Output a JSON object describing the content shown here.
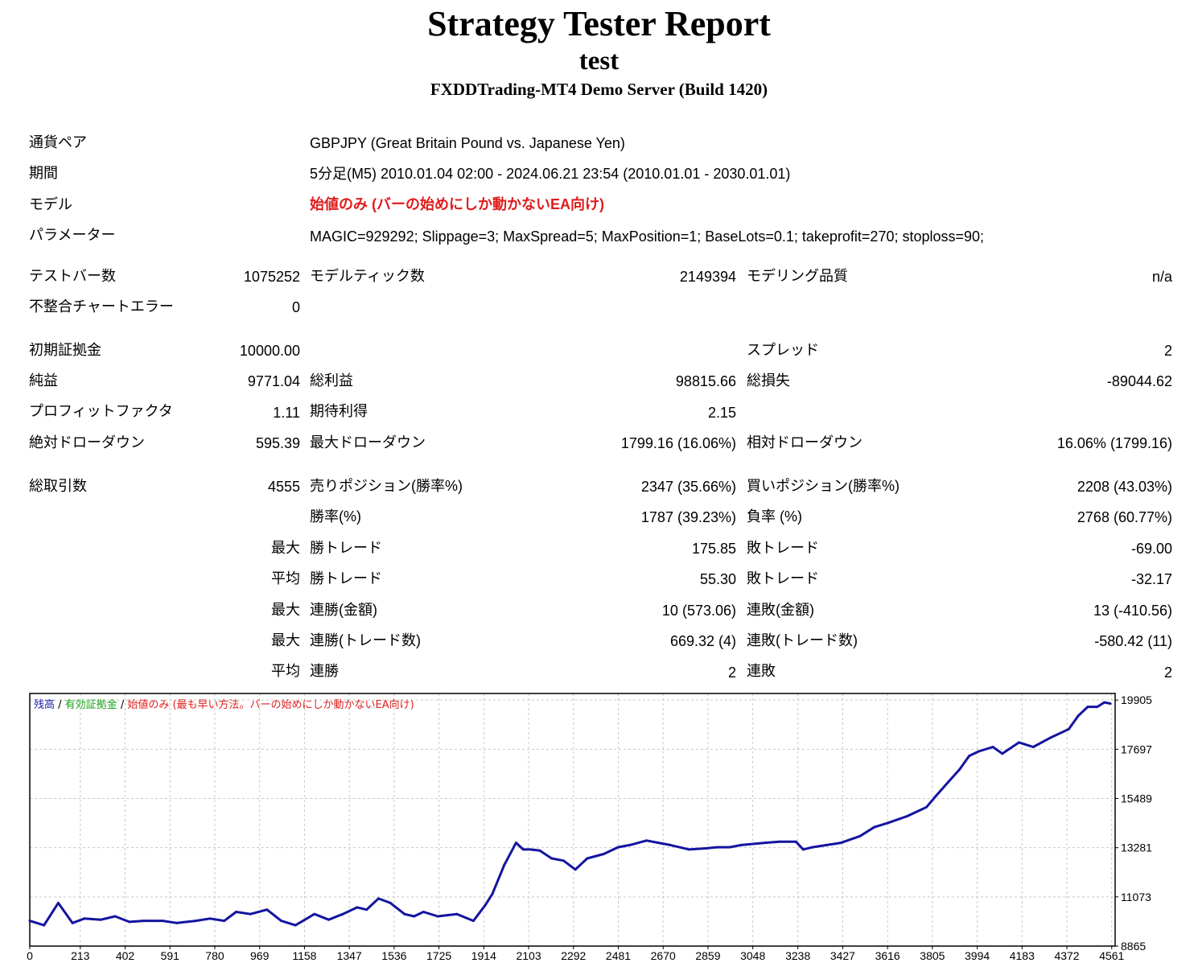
{
  "header": {
    "title": "Strategy Tester Report",
    "name": "test",
    "server": "FXDDTrading-MT4 Demo Server (Build 1420)"
  },
  "info": {
    "symbol_label": "通貨ペア",
    "symbol_value": "GBPJPY (Great Britain Pound vs. Japanese Yen)",
    "period_label": "期間",
    "period_value": "5分足(M5) 2010.01.04 02:00 - 2024.06.21 23:54 (2010.01.01 - 2030.01.01)",
    "model_label": "モデル",
    "model_value": "始値のみ (バーの始めにしか動かないEA向け)",
    "params_label": "パラメーター",
    "params_value": "MAGIC=929292; Slippage=3; MaxSpread=5; MaxPosition=1; BaseLots=0.1; takeprofit=270; stoploss=90;"
  },
  "stats": {
    "bars_label": "テストバー数",
    "bars_value": "1075252",
    "ticks_label": "モデルティック数",
    "ticks_value": "2149394",
    "quality_label": "モデリング品質",
    "quality_value": "n/a",
    "errors_label": "不整合チャートエラー",
    "errors_value": "0",
    "deposit_label": "初期証拠金",
    "deposit_value": "10000.00",
    "spread_label": "スプレッド",
    "spread_value": "2",
    "netprofit_label": "純益",
    "netprofit_value": "9771.04",
    "grossprofit_label": "総利益",
    "grossprofit_value": "98815.66",
    "grossloss_label": "総損失",
    "grossloss_value": "-89044.62",
    "pf_label": "プロフィットファクタ",
    "pf_value": "1.11",
    "payoff_label": "期待利得",
    "payoff_value": "2.15",
    "absdd_label": "絶対ドローダウン",
    "absdd_value": "595.39",
    "maxdd_label": "最大ドローダウン",
    "maxdd_value": "1799.16 (16.06%)",
    "reldd_label": "相対ドローダウン",
    "reldd_value": "16.06% (1799.16)",
    "trades_label": "総取引数",
    "trades_value": "4555",
    "short_label": "売りポジション(勝率%)",
    "short_value": "2347 (35.66%)",
    "long_label": "買いポジション(勝率%)",
    "long_value": "2208 (43.03%)",
    "winrate_label": "勝率(%)",
    "winrate_value": "1787 (39.23%)",
    "lossrate_label": "負率 (%)",
    "lossrate_value": "2768 (60.77%)",
    "max_label": "最大",
    "avg_label": "平均",
    "maxwin_label": "勝トレード",
    "maxwin_value": "175.85",
    "maxloss_label": "敗トレード",
    "maxloss_value": "-69.00",
    "avgwin_label": "勝トレード",
    "avgwin_value": "55.30",
    "avgloss_label": "敗トレード",
    "avgloss_value": "-32.17",
    "maxconsw_money_label": "連勝(金額)",
    "maxconsw_money_value": "10 (573.06)",
    "maxconsl_money_label": "連敗(金額)",
    "maxconsl_money_value": "13 (-410.56)",
    "maxconsw_count_label": "連勝(トレード数)",
    "maxconsw_count_value": "669.32 (4)",
    "maxconsl_count_label": "連敗(トレード数)",
    "maxconsl_count_value": "-580.42 (11)",
    "avgconsw_label": "連勝",
    "avgconsw_value": "2",
    "avgconsl_label": "連敗",
    "avgconsl_value": "2"
  },
  "chart_data": {
    "type": "line",
    "legend": [
      {
        "text": "残高",
        "color": "#1c1ca8"
      },
      {
        "text": " / ",
        "color": "#000000"
      },
      {
        "text": "有効証拠金",
        "color": "#18a018"
      },
      {
        "text": " / ",
        "color": "#000000"
      },
      {
        "text": "始値のみ (最も早い方法。バーの始めにしか動かないEA向け)",
        "color": "#e02020"
      }
    ],
    "line_color": "#1414a0",
    "x_ticks": [
      0,
      213,
      402,
      591,
      780,
      969,
      1158,
      1347,
      1536,
      1725,
      1914,
      2103,
      2292,
      2481,
      2670,
      2859,
      3048,
      3238,
      3427,
      3616,
      3805,
      3994,
      4183,
      4372,
      4561
    ],
    "y_ticks": [
      8865,
      11073,
      13281,
      15489,
      17697,
      19905
    ],
    "xlim": [
      0,
      4555
    ],
    "ylim": [
      8865,
      20200
    ],
    "series": [
      {
        "x": [
          0,
          60,
          120,
          180,
          230,
          300,
          360,
          420,
          480,
          560,
          620,
          700,
          760,
          820,
          870,
          930,
          1000,
          1060,
          1120,
          1160,
          1200,
          1260,
          1320,
          1380,
          1420,
          1470,
          1520,
          1580,
          1620,
          1660,
          1720,
          1800,
          1870,
          1920,
          1950,
          2000,
          2050,
          2080,
          2110,
          2150,
          2200,
          2250,
          2300,
          2350,
          2420,
          2480,
          2530,
          2600,
          2650,
          2700,
          2780,
          2850,
          2900,
          2950,
          3000,
          3100,
          3160,
          3230,
          3260,
          3300,
          3360,
          3420,
          3500,
          3560,
          3620,
          3700,
          3780,
          3820,
          3870,
          3920,
          3960,
          4000,
          4060,
          4100,
          4170,
          4230,
          4300,
          4380,
          4420,
          4460,
          4500,
          4530,
          4555
        ],
        "y": [
          10000,
          9800,
          10800,
          9900,
          10100,
          10050,
          10200,
          9950,
          10000,
          10000,
          9900,
          10000,
          10100,
          10000,
          10400,
          10300,
          10500,
          10000,
          9800,
          10050,
          10300,
          10050,
          10300,
          10600,
          10500,
          11000,
          10800,
          10300,
          10200,
          10400,
          10200,
          10300,
          10000,
          10700,
          11200,
          12500,
          13500,
          13200,
          13200,
          13150,
          12800,
          12700,
          12300,
          12800,
          13000,
          13300,
          13400,
          13600,
          13500,
          13400,
          13200,
          13250,
          13300,
          13300,
          13400,
          13500,
          13550,
          13550,
          13200,
          13300,
          13400,
          13500,
          13800,
          14200,
          14400,
          14700,
          15100,
          15600,
          16200,
          16800,
          17400,
          17600,
          17800,
          17500,
          18000,
          17800,
          18200,
          18600,
          19200,
          19600,
          19600,
          19800,
          19750
        ]
      }
    ]
  }
}
